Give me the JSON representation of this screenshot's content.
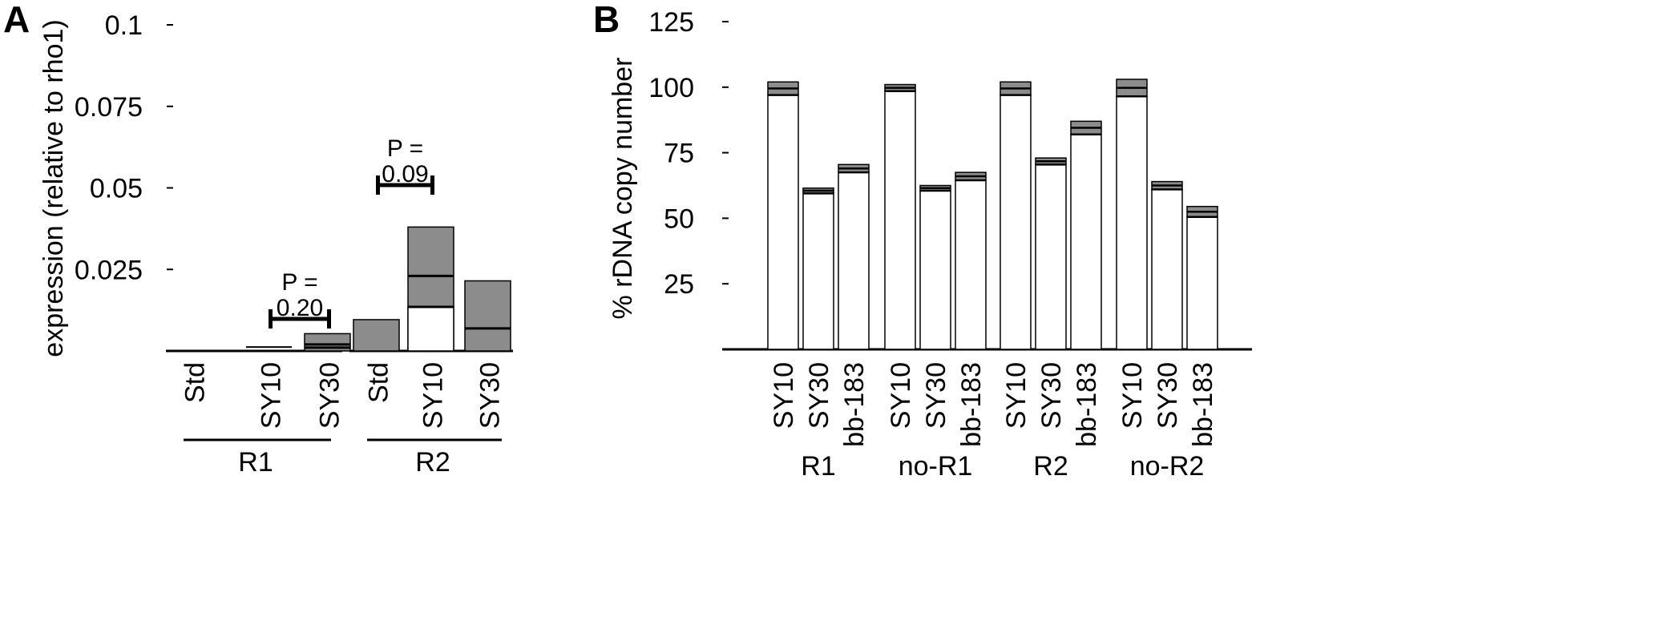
{
  "chart_data": [
    {
      "type": "bar",
      "panel_label": "A",
      "ylabel": "expression (relative to rho1)",
      "ylim": [
        0,
        0.1
      ],
      "yticks": [
        0.025,
        0.05,
        0.075,
        0.1
      ],
      "ytick_labels": [
        "0.025",
        "0.05",
        "0.075",
        "0.1"
      ],
      "groups": [
        {
          "name": "R1",
          "bars": [
            {
              "category": "Std",
              "value": 0.0,
              "lines": []
            },
            {
              "category": "SY10",
              "value": 0.0012,
              "lines": [],
              "fill": "outline"
            },
            {
              "category": "SY30",
              "value": 0.0053,
              "lines": [
                0.001,
                0.002
              ],
              "fill": "#8c8c8c"
            }
          ],
          "p_value": {
            "label": "P =",
            "value": "0.20",
            "between": [
              "SY10",
              "SY30"
            ]
          }
        },
        {
          "name": "R2",
          "bars": [
            {
              "category": "Std",
              "value": 0.0096,
              "lines": [],
              "fill": "#8c8c8c"
            },
            {
              "category": "SY10",
              "value": 0.038,
              "lines": [
                0.0135,
                0.023
              ],
              "white_below": 0.0135,
              "fill": "#8c8c8c"
            },
            {
              "category": "SY30",
              "value": 0.0215,
              "lines": [
                0.0069
              ],
              "fill": "#8c8c8c"
            }
          ],
          "p_value": {
            "label": "P =",
            "value": "0.09",
            "between": [
              "Std",
              "SY10"
            ]
          }
        }
      ]
    },
    {
      "type": "bar",
      "panel_label": "B",
      "ylabel": "% rDNA copy number",
      "ylim": [
        0,
        125
      ],
      "yticks": [
        25,
        50,
        75,
        100,
        125
      ],
      "ytick_labels": [
        "25",
        "50",
        "75",
        "100",
        "125"
      ],
      "groups": [
        {
          "name": "R1",
          "bars": [
            {
              "category": "SY10",
              "value": 97,
              "cap": 102
            },
            {
              "category": "SY30",
              "value": 59.5,
              "cap": 61.5
            },
            {
              "category": "bb-183",
              "value": 67.5,
              "cap": 70.5
            }
          ]
        },
        {
          "name": "no-R1",
          "bars": [
            {
              "category": "SY10",
              "value": 98.5,
              "cap": 101
            },
            {
              "category": "SY30",
              "value": 60.5,
              "cap": 62.5
            },
            {
              "category": "bb-183",
              "value": 64.5,
              "cap": 67.5
            }
          ]
        },
        {
          "name": "R2",
          "bars": [
            {
              "category": "SY10",
              "value": 97,
              "cap": 102
            },
            {
              "category": "SY30",
              "value": 70.5,
              "cap": 73
            },
            {
              "category": "bb-183",
              "value": 82,
              "cap": 87
            }
          ]
        },
        {
          "name": "no-R2",
          "bars": [
            {
              "category": "SY10",
              "value": 96.5,
              "cap": 103
            },
            {
              "category": "SY30",
              "value": 61,
              "cap": 64
            },
            {
              "category": "bb-183",
              "value": 50.5,
              "cap": 54.5
            }
          ]
        }
      ]
    }
  ]
}
